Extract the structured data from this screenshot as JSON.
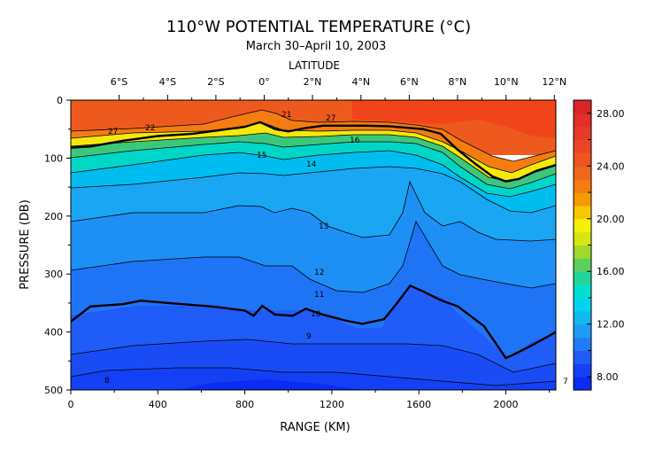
{
  "chart_data": {
    "type": "heatmap",
    "title": "110°W POTENTIAL TEMPERATURE (°C)",
    "subtitle": "March 30–April 10, 2003",
    "top_axis_label": "LATITUDE",
    "xlabel": "RANGE (KM)",
    "ylabel": "PRESSURE (DB)",
    "xlim": [
      0,
      2230
    ],
    "ylim": [
      500,
      0
    ],
    "x_ticks": [
      "0",
      "400",
      "800",
      "1200",
      "1600",
      "2000"
    ],
    "x_tick_values": [
      0,
      400,
      800,
      1200,
      1600,
      2000
    ],
    "y_ticks": [
      "0",
      "100",
      "200",
      "300",
      "400",
      "500"
    ],
    "y_tick_values": [
      0,
      100,
      200,
      300,
      400,
      500
    ],
    "lat_ticks": [
      "6°S",
      "4°S",
      "2°S",
      "0°",
      "2°N",
      "4°N",
      "6°N",
      "8°N",
      "10°N",
      "12°N"
    ],
    "lat_tick_range_km": [
      222,
      445,
      667,
      889,
      1111,
      1334,
      1556,
      1778,
      2001,
      2223
    ],
    "colorbar": {
      "min": 7,
      "max": 29,
      "tick_labels": [
        "8.00",
        "12.00",
        "16.00",
        "20.00",
        "24.00",
        "28.00"
      ],
      "tick_values": [
        8,
        12,
        16,
        20,
        24,
        28
      ],
      "minor_tick_values": [
        10,
        14,
        18,
        22,
        26
      ],
      "colors": [
        "#0b2bf2",
        "#1540f5",
        "#1f5cf8",
        "#1f7cf6",
        "#1e9cf3",
        "#10baf0",
        "#00d4ee",
        "#00e0d2",
        "#22d69a",
        "#5ad05e",
        "#9ed92b",
        "#d6e614",
        "#f5f00a",
        "#f8c800",
        "#f79a00",
        "#f47c11",
        "#f0661a",
        "#ee5520",
        "#ea4625",
        "#e53b28",
        "#e03028",
        "#da2626"
      ]
    },
    "contour_labels": [
      "27",
      "22",
      "21",
      "16",
      "15",
      "14",
      "13",
      "12",
      "11",
      "10",
      "9",
      "8",
      "7"
    ],
    "thick_isotherms": [
      {
        "label": "10",
        "range_km": [
          0,
          90,
          240,
          320,
          480,
          650,
          800,
          840,
          880,
          940,
          1020,
          1080,
          1160,
          1260,
          1340,
          1440,
          1500,
          1560,
          1620,
          1700,
          1780,
          1900,
          2000,
          2040,
          2120,
          2230
        ],
        "pressure": [
          382,
          356,
          352,
          346,
          351,
          356,
          363,
          372,
          355,
          370,
          372,
          360,
          370,
          380,
          386,
          378,
          350,
          320,
          330,
          345,
          356,
          390,
          445,
          438,
          423,
          400
        ]
      },
      {
        "label": "20",
        "range_km": [
          0,
          90,
          240,
          400,
          560,
          680,
          800,
          870,
          940,
          1000,
          1080,
          1160,
          1260,
          1360,
          1460,
          1560,
          1620,
          1700,
          1780,
          1860,
          1940,
          2000,
          2060,
          2140,
          2230
        ],
        "pressure": [
          82,
          80,
          70,
          62,
          58,
          52,
          46,
          38,
          50,
          54,
          48,
          44,
          44,
          44,
          45,
          48,
          50,
          58,
          86,
          110,
          132,
          140,
          136,
          122,
          112
        ]
      }
    ]
  }
}
